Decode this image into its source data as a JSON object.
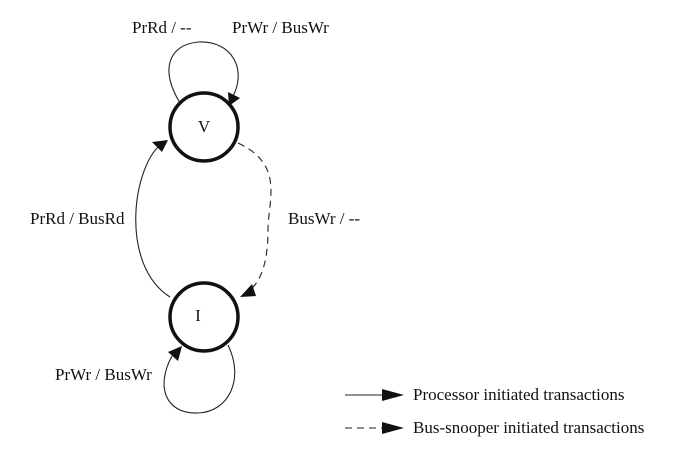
{
  "states": {
    "v": "V",
    "i": "I"
  },
  "transitions": {
    "v_self": "PrRd / --",
    "v_self_write": "PrWr / BusWr",
    "i_to_v": "PrRd / BusRd",
    "v_to_i": "BusWr / --",
    "i_self": "PrWr / BusWr"
  },
  "legend": {
    "processor": "Processor initiated transactions",
    "snooper": "Bus-snooper initiated transactions"
  }
}
